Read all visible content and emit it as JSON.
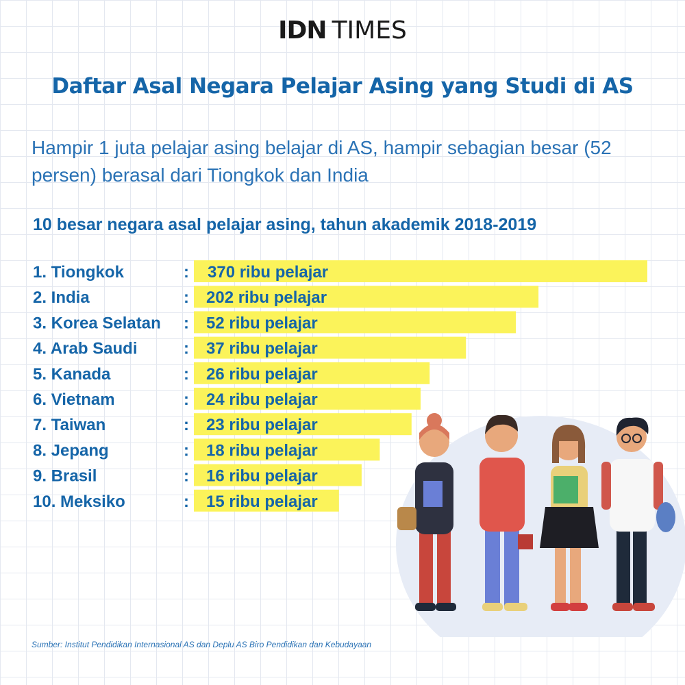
{
  "header": {
    "brand_idn": "IDN",
    "brand_times": "TIMES"
  },
  "title": "Daftar Asal Negara Pelajar Asing yang Studi di AS",
  "subtitle": "Hampir 1 juta pelajar asing belajar di AS, hampir sebagian besar (52 persen) berasal dari Tiongkok dan India",
  "chart_data": {
    "type": "bar",
    "orientation": "horizontal",
    "title": "10 besar negara asal pelajar asing, tahun akademik 2018-2019",
    "categories": [
      "1. Tiongkok",
      "2. India",
      "3. Korea Selatan",
      "4. Arab Saudi",
      "5. Kanada",
      "6. Vietnam",
      "7. Taiwan",
      "8. Jepang",
      "9. Brasil",
      "10. Meksiko"
    ],
    "values": [
      370,
      202,
      52,
      37,
      26,
      24,
      23,
      18,
      16,
      15
    ],
    "value_labels": [
      "370 ribu pelajar",
      "202 ribu pelajar",
      "52 ribu pelajar",
      "37 ribu pelajar",
      "26 ribu pelajar",
      "24 ribu pelajar",
      "23 ribu pelajar",
      "18 ribu pelajar",
      "16 ribu pelajar",
      "15 ribu pelajar"
    ],
    "bar_levels": [
      1.0,
      0.76,
      0.71,
      0.6,
      0.52,
      0.5,
      0.48,
      0.41,
      0.37,
      0.32
    ],
    "separator": ":",
    "bar_color": "#fbf35a",
    "label_color": "#1565a8"
  },
  "colors": {
    "title": "#1565a8",
    "subtitle": "#2a72b5",
    "grid": "#e4e8f0",
    "bar": "#fbf35a"
  },
  "illustration": {
    "icon": "four-students-illustration"
  },
  "source": "Sumber: Institut Pendidikan Internasional AS dan Deplu AS Biro Pendidikan dan Kebudayaan"
}
